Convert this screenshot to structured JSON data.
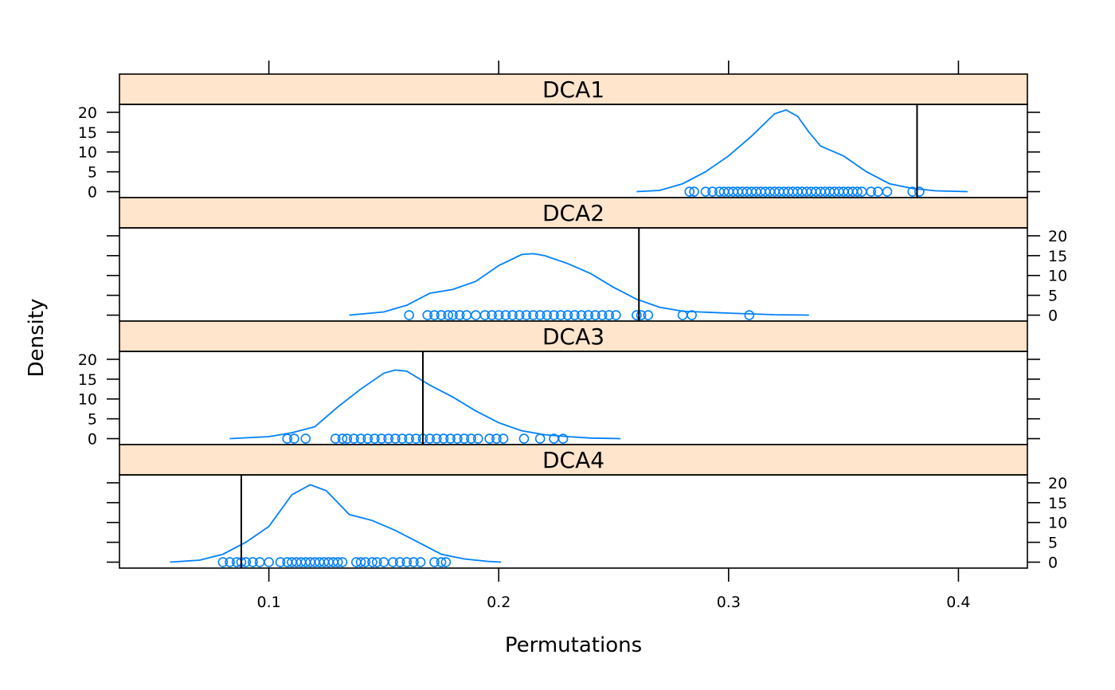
{
  "chart_data": {
    "type": "density",
    "xlabel": "Permutations",
    "ylabel": "Density",
    "xlim": [
      0.035,
      0.43
    ],
    "ylim": [
      -1.5,
      22
    ],
    "x_ticks": [
      0.1,
      0.2,
      0.3,
      0.4
    ],
    "x_tick_labels": [
      "0.1",
      "0.2",
      "0.3",
      "0.4"
    ],
    "y_ticks": [
      0,
      5,
      10,
      15,
      20
    ],
    "y_tick_labels": [
      "0",
      "5",
      "10",
      "15",
      "20"
    ],
    "panels": [
      {
        "name": "DCA1",
        "y_axis_side": "left",
        "observed": 0.382,
        "density": [
          [
            0.26,
            0
          ],
          [
            0.27,
            0.3
          ],
          [
            0.28,
            2
          ],
          [
            0.29,
            5
          ],
          [
            0.3,
            9
          ],
          [
            0.31,
            14
          ],
          [
            0.32,
            19.6
          ],
          [
            0.325,
            20.6
          ],
          [
            0.33,
            19
          ],
          [
            0.335,
            15
          ],
          [
            0.34,
            11.5
          ],
          [
            0.35,
            9
          ],
          [
            0.36,
            5
          ],
          [
            0.37,
            2
          ],
          [
            0.38,
            0.8
          ],
          [
            0.39,
            0.2
          ],
          [
            0.404,
            0
          ]
        ],
        "points": [
          0.283,
          0.285,
          0.29,
          0.293,
          0.296,
          0.298,
          0.3,
          0.302,
          0.304,
          0.306,
          0.308,
          0.31,
          0.312,
          0.314,
          0.316,
          0.318,
          0.32,
          0.322,
          0.324,
          0.326,
          0.328,
          0.33,
          0.332,
          0.334,
          0.336,
          0.338,
          0.34,
          0.342,
          0.344,
          0.346,
          0.348,
          0.35,
          0.352,
          0.354,
          0.356,
          0.358,
          0.362,
          0.365,
          0.369,
          0.38,
          0.383
        ]
      },
      {
        "name": "DCA2",
        "y_axis_side": "right",
        "observed": 0.261,
        "density": [
          [
            0.135,
            0
          ],
          [
            0.15,
            0.8
          ],
          [
            0.16,
            2.5
          ],
          [
            0.17,
            5.5
          ],
          [
            0.18,
            6.5
          ],
          [
            0.19,
            8.5
          ],
          [
            0.2,
            12.5
          ],
          [
            0.21,
            15.3
          ],
          [
            0.215,
            15.5
          ],
          [
            0.22,
            15
          ],
          [
            0.23,
            13
          ],
          [
            0.24,
            10.5
          ],
          [
            0.25,
            7
          ],
          [
            0.26,
            4
          ],
          [
            0.27,
            2
          ],
          [
            0.28,
            1
          ],
          [
            0.3,
            0.5
          ],
          [
            0.32,
            0.1
          ],
          [
            0.335,
            0
          ]
        ],
        "points": [
          0.161,
          0.169,
          0.172,
          0.175,
          0.178,
          0.18,
          0.183,
          0.186,
          0.19,
          0.194,
          0.197,
          0.2,
          0.203,
          0.206,
          0.209,
          0.212,
          0.215,
          0.218,
          0.221,
          0.224,
          0.227,
          0.23,
          0.233,
          0.236,
          0.239,
          0.242,
          0.245,
          0.248,
          0.251,
          0.26,
          0.262,
          0.265,
          0.28,
          0.284,
          0.309
        ]
      },
      {
        "name": "DCA3",
        "y_axis_side": "left",
        "observed": 0.167,
        "density": [
          [
            0.083,
            0
          ],
          [
            0.1,
            0.5
          ],
          [
            0.11,
            1.5
          ],
          [
            0.12,
            3
          ],
          [
            0.13,
            8
          ],
          [
            0.14,
            12.5
          ],
          [
            0.15,
            16.5
          ],
          [
            0.155,
            17.3
          ],
          [
            0.16,
            17
          ],
          [
            0.17,
            13.5
          ],
          [
            0.18,
            10.5
          ],
          [
            0.19,
            7
          ],
          [
            0.2,
            4
          ],
          [
            0.21,
            2
          ],
          [
            0.22,
            1
          ],
          [
            0.23,
            0.5
          ],
          [
            0.24,
            0.15
          ],
          [
            0.253,
            0
          ]
        ],
        "points": [
          0.108,
          0.111,
          0.116,
          0.129,
          0.132,
          0.134,
          0.137,
          0.14,
          0.143,
          0.146,
          0.149,
          0.152,
          0.155,
          0.158,
          0.161,
          0.164,
          0.167,
          0.17,
          0.173,
          0.176,
          0.179,
          0.182,
          0.185,
          0.188,
          0.191,
          0.196,
          0.199,
          0.202,
          0.211,
          0.218,
          0.224,
          0.228
        ]
      },
      {
        "name": "DCA4",
        "y_axis_side": "right",
        "observed": 0.088,
        "density": [
          [
            0.057,
            0
          ],
          [
            0.07,
            0.5
          ],
          [
            0.08,
            2
          ],
          [
            0.09,
            5
          ],
          [
            0.1,
            9
          ],
          [
            0.11,
            17
          ],
          [
            0.118,
            19.5
          ],
          [
            0.125,
            18
          ],
          [
            0.135,
            12
          ],
          [
            0.145,
            10.5
          ],
          [
            0.155,
            8
          ],
          [
            0.165,
            5
          ],
          [
            0.175,
            2
          ],
          [
            0.185,
            0.8
          ],
          [
            0.195,
            0.2
          ],
          [
            0.201,
            0
          ]
        ],
        "points": [
          0.08,
          0.083,
          0.086,
          0.088,
          0.09,
          0.093,
          0.096,
          0.1,
          0.105,
          0.108,
          0.11,
          0.112,
          0.114,
          0.116,
          0.118,
          0.12,
          0.122,
          0.124,
          0.126,
          0.128,
          0.13,
          0.132,
          0.138,
          0.14,
          0.142,
          0.145,
          0.147,
          0.15,
          0.154,
          0.157,
          0.16,
          0.163,
          0.166,
          0.172,
          0.175,
          0.177
        ]
      }
    ]
  }
}
